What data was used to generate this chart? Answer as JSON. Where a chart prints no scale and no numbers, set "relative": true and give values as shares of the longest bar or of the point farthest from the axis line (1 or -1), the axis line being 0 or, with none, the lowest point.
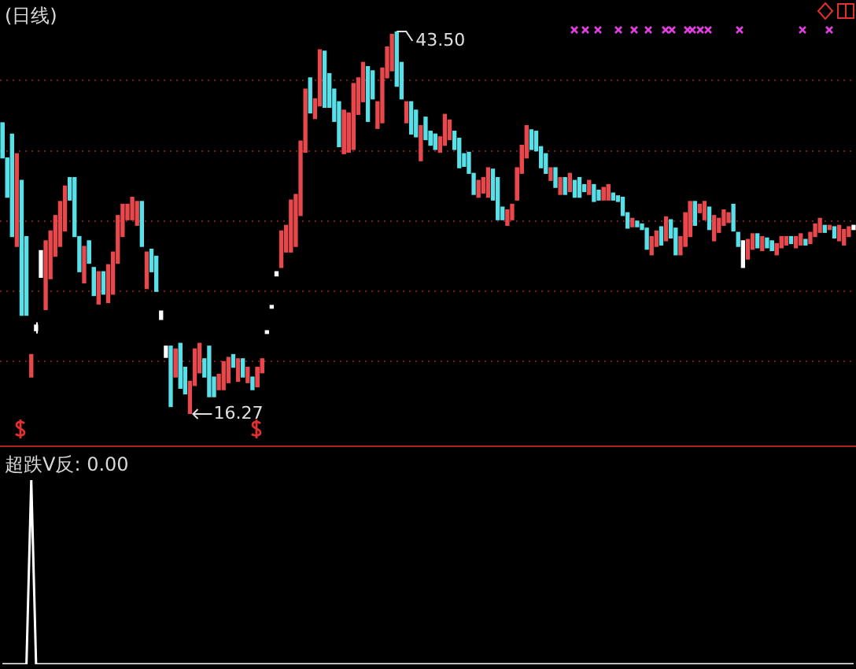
{
  "chart_data": [
    {
      "type": "candlestick",
      "title": "(日线)",
      "legend": false,
      "grid": "y",
      "tick_labels": false,
      "yticks": [
        {
          "value": 20,
          "label": null
        },
        {
          "value": 25,
          "label": null
        },
        {
          "value": 30,
          "label": null
        },
        {
          "value": 35,
          "label": null
        },
        {
          "value": 40,
          "label": null
        }
      ],
      "annotations": [
        "43.50",
        "16.27"
      ],
      "categories": [
        null,
        null,
        null,
        null,
        null,
        null,
        null,
        null,
        null,
        null,
        null,
        null,
        null,
        null,
        null,
        null,
        null,
        null,
        null,
        null,
        null,
        null,
        null,
        null,
        null,
        null,
        null,
        null,
        null,
        null,
        null,
        null,
        null,
        null,
        null,
        null,
        null,
        null,
        null,
        null,
        null,
        null,
        null,
        null,
        null,
        null,
        null,
        null,
        null,
        null,
        null,
        null,
        null,
        null,
        null,
        null,
        null,
        null,
        null,
        null,
        null,
        null,
        null,
        null,
        null,
        null,
        null,
        null,
        null,
        null,
        null,
        null,
        null,
        null,
        null,
        null,
        null,
        null,
        null,
        null,
        null,
        null,
        null,
        null,
        null,
        null,
        null,
        null,
        null,
        null,
        null,
        null,
        null,
        null,
        null,
        null,
        null,
        null,
        null,
        null,
        null,
        null,
        null,
        null,
        null,
        null,
        null,
        null,
        null,
        null,
        null,
        null,
        null,
        null,
        null,
        null,
        null,
        null,
        null,
        null,
        null,
        null,
        null,
        null,
        null,
        null,
        null,
        null,
        null,
        null,
        null,
        null,
        null,
        null,
        null,
        null,
        null,
        null,
        null,
        null,
        null,
        null,
        null,
        null,
        null,
        null,
        null,
        null,
        null,
        null,
        null,
        null,
        null,
        null,
        null,
        null,
        null,
        null,
        null,
        null,
        null,
        null,
        null,
        null,
        null,
        null,
        null,
        null,
        null,
        null,
        null,
        null,
        null,
        null,
        null,
        null,
        null,
        null
      ],
      "ohlc": [
        [
          37.0,
          37.0,
          34.5,
          34.5
        ],
        [
          34.5,
          34.5,
          31.7,
          31.7
        ],
        [
          36.2,
          36.2,
          28.9,
          28.9
        ],
        [
          28.2,
          34.8,
          28.2,
          34.8
        ],
        [
          32.9,
          32.9,
          23.3,
          23.3
        ],
        [
          28.9,
          28.9,
          23.3,
          23.3
        ],
        [
          18.9,
          20.5,
          18.9,
          20.5
        ],
        [
          22.6,
          22.8,
          22.0,
          22.2
        ],
        [
          27.9,
          27.9,
          26.0,
          26.0
        ],
        [
          23.7,
          28.6,
          23.7,
          28.6
        ],
        [
          25.9,
          29.3,
          25.9,
          29.3
        ],
        [
          27.5,
          30.4,
          27.5,
          30.4
        ],
        [
          28.2,
          31.4,
          28.2,
          31.4
        ],
        [
          29.3,
          32.5,
          29.3,
          32.5
        ],
        [
          33.1,
          33.1,
          31.5,
          31.5
        ],
        [
          33.1,
          33.1,
          28.9,
          28.9
        ],
        [
          28.9,
          28.9,
          26.4,
          26.4
        ],
        [
          25.6,
          28.2,
          25.6,
          28.2
        ],
        [
          28.6,
          28.6,
          27.0,
          27.0
        ],
        [
          26.7,
          26.7,
          24.7,
          24.7
        ],
        [
          24.1,
          26.4,
          24.1,
          26.4
        ],
        [
          26.4,
          26.4,
          24.8,
          24.8
        ],
        [
          24.2,
          26.9,
          24.2,
          26.9
        ],
        [
          24.8,
          27.8,
          24.8,
          27.8
        ],
        [
          27.0,
          30.4,
          27.0,
          30.4
        ],
        [
          28.9,
          31.2,
          28.9,
          31.2
        ],
        [
          30.1,
          31.2,
          30.1,
          31.2
        ],
        [
          30.1,
          31.7,
          30.1,
          31.7
        ],
        [
          29.7,
          31.4,
          29.7,
          31.4
        ],
        [
          31.4,
          31.4,
          28.2,
          28.2
        ],
        [
          25.2,
          27.8,
          25.2,
          27.8
        ],
        [
          28.0,
          28.0,
          26.4,
          26.4
        ],
        [
          27.5,
          27.5,
          25.0,
          25.0
        ],
        [
          23.6,
          23.6,
          23.0,
          23.0
        ],
        [
          21.1,
          21.1,
          20.3,
          20.3
        ],
        [
          21.1,
          21.1,
          16.8,
          16.8
        ],
        [
          18.9,
          20.9,
          18.9,
          20.9
        ],
        [
          21.3,
          21.3,
          18.1,
          18.1
        ],
        [
          19.6,
          19.6,
          17.7,
          17.7
        ],
        [
          16.27,
          18.6,
          16.27,
          18.6
        ],
        [
          18.3,
          20.9,
          18.3,
          20.9
        ],
        [
          19.2,
          21.3,
          19.2,
          21.3
        ],
        [
          20.2,
          20.2,
          18.9,
          18.9
        ],
        [
          21.1,
          21.1,
          17.5,
          17.5
        ],
        [
          18.9,
          18.9,
          17.5,
          17.5
        ],
        [
          18.0,
          19.1,
          18.0,
          19.1
        ],
        [
          18.0,
          20.0,
          18.0,
          20.0
        ],
        [
          18.5,
          20.3,
          18.5,
          20.3
        ],
        [
          20.5,
          20.5,
          19.6,
          19.6
        ],
        [
          18.6,
          20.2,
          18.6,
          20.2
        ],
        [
          20.2,
          20.2,
          18.9,
          18.9
        ],
        [
          18.5,
          19.6,
          18.5,
          19.6
        ],
        [
          18.9,
          18.9,
          18.0,
          18.0
        ],
        [
          18.2,
          19.6,
          18.2,
          19.6
        ],
        [
          19.2,
          20.2,
          19.2,
          20.2
        ],
        [
          22.2,
          22.2,
          22.0,
          22.0
        ],
        [
          24.0,
          24.0,
          23.8,
          23.8
        ],
        [
          26.4,
          26.4,
          26.1,
          26.1
        ],
        [
          26.7,
          29.3,
          26.7,
          29.3
        ],
        [
          27.8,
          29.7,
          27.8,
          29.7
        ],
        [
          27.8,
          31.5,
          27.8,
          31.5
        ],
        [
          28.2,
          31.9,
          28.2,
          31.9
        ],
        [
          30.4,
          35.7,
          30.4,
          35.7
        ],
        [
          34.9,
          39.4,
          34.9,
          39.4
        ],
        [
          40.2,
          40.2,
          37.7,
          37.7
        ],
        [
          37.3,
          38.7,
          37.3,
          38.7
        ],
        [
          38.2,
          42.2,
          38.2,
          42.2
        ],
        [
          42.1,
          42.1,
          38.1,
          38.1
        ],
        [
          40.5,
          40.5,
          38.1,
          38.1
        ],
        [
          39.4,
          39.4,
          37.1,
          37.1
        ],
        [
          38.5,
          38.5,
          35.3,
          35.3
        ],
        [
          34.8,
          37.9,
          34.8,
          37.9
        ],
        [
          34.9,
          37.7,
          34.9,
          37.7
        ],
        [
          35.1,
          39.8,
          35.1,
          39.8
        ],
        [
          37.6,
          40.2,
          37.6,
          40.2
        ],
        [
          38.5,
          41.3,
          38.5,
          41.3
        ],
        [
          41.0,
          41.0,
          37.1,
          37.1
        ],
        [
          40.7,
          40.7,
          38.7,
          38.7
        ],
        [
          36.6,
          38.5,
          36.6,
          38.5
        ],
        [
          37.0,
          40.9,
          37.0,
          40.9
        ],
        [
          40.2,
          42.4,
          40.2,
          42.4
        ],
        [
          40.7,
          43.3,
          40.7,
          43.3
        ],
        [
          43.5,
          43.5,
          39.6,
          39.6
        ],
        [
          41.3,
          41.3,
          38.7,
          38.7
        ],
        [
          37.0,
          38.5,
          37.0,
          38.5
        ],
        [
          38.5,
          38.5,
          36.2,
          36.2
        ],
        [
          37.9,
          37.9,
          36.0,
          36.0
        ],
        [
          34.3,
          36.8,
          34.3,
          36.8
        ],
        [
          37.4,
          37.4,
          35.8,
          35.8
        ],
        [
          36.4,
          36.4,
          35.4,
          35.4
        ],
        [
          36.2,
          36.2,
          35.1,
          35.1
        ],
        [
          34.9,
          36.0,
          34.9,
          36.0
        ],
        [
          35.4,
          37.6,
          35.4,
          37.6
        ],
        [
          35.8,
          37.2,
          35.8,
          37.2
        ],
        [
          36.4,
          36.4,
          35.1,
          35.1
        ],
        [
          35.9,
          35.9,
          33.8,
          33.8
        ],
        [
          34.8,
          34.8,
          33.9,
          33.9
        ],
        [
          34.9,
          34.9,
          33.4,
          33.4
        ],
        [
          33.4,
          33.4,
          31.9,
          31.9
        ],
        [
          31.7,
          32.9,
          31.7,
          32.9
        ],
        [
          32.0,
          33.1,
          32.0,
          33.1
        ],
        [
          31.7,
          33.8,
          31.7,
          33.8
        ],
        [
          33.7,
          33.7,
          31.5,
          31.5
        ],
        [
          33.1,
          33.1,
          30.1,
          30.1
        ],
        [
          31.0,
          31.0,
          30.1,
          30.1
        ],
        [
          29.7,
          30.8,
          29.7,
          30.8
        ],
        [
          30.1,
          31.2,
          30.1,
          31.2
        ],
        [
          31.5,
          33.8,
          31.5,
          33.8
        ],
        [
          33.4,
          35.4,
          33.4,
          35.4
        ],
        [
          34.5,
          36.8,
          34.5,
          36.8
        ],
        [
          36.5,
          36.5,
          35.1,
          35.1
        ],
        [
          36.4,
          36.4,
          35.0,
          35.0
        ],
        [
          35.3,
          35.3,
          33.8,
          33.8
        ],
        [
          34.8,
          34.8,
          33.4,
          33.4
        ],
        [
          32.9,
          33.8,
          32.9,
          33.8
        ],
        [
          33.8,
          33.8,
          32.4,
          32.4
        ],
        [
          31.9,
          33.1,
          31.9,
          33.1
        ],
        [
          33.1,
          33.1,
          31.9,
          31.9
        ],
        [
          32.1,
          33.4,
          32.1,
          33.4
        ],
        [
          32.9,
          32.9,
          31.7,
          31.7
        ],
        [
          33.1,
          33.1,
          31.7,
          31.7
        ],
        [
          32.6,
          32.6,
          32.1,
          32.1
        ],
        [
          31.9,
          32.9,
          31.9,
          32.9
        ],
        [
          32.6,
          32.6,
          31.4,
          31.4
        ],
        [
          32.2,
          32.2,
          31.5,
          31.5
        ],
        [
          31.5,
          32.4,
          31.5,
          32.4
        ],
        [
          31.5,
          32.6,
          31.5,
          32.6
        ],
        [
          32.0,
          32.0,
          31.5,
          31.5
        ],
        [
          31.8,
          31.8,
          31.4,
          31.4
        ],
        [
          31.7,
          31.7,
          30.4,
          30.4
        ],
        [
          30.6,
          30.6,
          29.5,
          29.5
        ],
        [
          29.6,
          30.2,
          29.6,
          30.2
        ],
        [
          30.0,
          30.0,
          29.6,
          29.6
        ],
        [
          29.8,
          29.8,
          29.4,
          29.4
        ],
        [
          29.5,
          29.5,
          28.0,
          28.0
        ],
        [
          27.6,
          28.9,
          27.6,
          28.9
        ],
        [
          28.2,
          29.3,
          28.2,
          29.3
        ],
        [
          29.6,
          29.6,
          28.3,
          28.3
        ],
        [
          28.6,
          30.3,
          28.6,
          30.3
        ],
        [
          30.1,
          30.1,
          28.8,
          28.8
        ],
        [
          29.5,
          29.5,
          27.6,
          27.6
        ],
        [
          27.6,
          28.9,
          27.6,
          28.9
        ],
        [
          28.2,
          30.6,
          28.2,
          30.6
        ],
        [
          28.9,
          31.4,
          28.9,
          31.4
        ],
        [
          31.4,
          31.4,
          29.7,
          29.7
        ],
        [
          30.6,
          31.2,
          30.6,
          31.2
        ],
        [
          30.1,
          31.4,
          30.1,
          31.4
        ],
        [
          31.0,
          31.0,
          29.4,
          29.4
        ],
        [
          28.6,
          30.4,
          28.6,
          30.4
        ],
        [
          29.2,
          30.2,
          29.2,
          30.2
        ],
        [
          29.7,
          30.8,
          29.7,
          30.8
        ],
        [
          29.9,
          30.6,
          29.9,
          30.6
        ],
        [
          31.2,
          31.2,
          29.3,
          29.3
        ],
        [
          29.2,
          29.2,
          28.2,
          28.2
        ],
        [
          28.6,
          28.6,
          26.7,
          26.7
        ],
        [
          27.3,
          28.7,
          27.3,
          28.7
        ],
        [
          28.0,
          29.1,
          28.0,
          29.1
        ],
        [
          29.1,
          29.1,
          28.1,
          28.1
        ],
        [
          27.9,
          28.9,
          27.9,
          28.9
        ],
        [
          28.8,
          28.8,
          28.1,
          28.1
        ],
        [
          28.6,
          28.6,
          27.9,
          27.9
        ],
        [
          27.6,
          28.4,
          27.6,
          28.4
        ],
        [
          28.1,
          28.9,
          28.1,
          28.9
        ],
        [
          28.3,
          28.9,
          28.3,
          28.9
        ],
        [
          28.9,
          28.9,
          28.4,
          28.4
        ],
        [
          28.1,
          28.9,
          28.1,
          28.9
        ],
        [
          28.3,
          29.1,
          28.3,
          29.1
        ],
        [
          28.7,
          28.7,
          28.3,
          28.3
        ],
        [
          28.4,
          29.2,
          28.4,
          29.2
        ],
        [
          28.9,
          29.8,
          28.9,
          29.8
        ],
        [
          29.2,
          30.2,
          29.2,
          30.2
        ],
        [
          29.7,
          29.7,
          29.2,
          29.2
        ],
        [
          29.4,
          29.7,
          29.4,
          29.7
        ],
        [
          29.6,
          29.6,
          28.8,
          28.8
        ],
        [
          28.6,
          29.7,
          28.6,
          29.7
        ],
        [
          28.3,
          29.4,
          28.3,
          29.4
        ],
        [
          28.9,
          29.6,
          28.9,
          29.6
        ],
        [
          29.7,
          29.7,
          29.4,
          29.4
        ]
      ],
      "colors": [
        "#58e0e8",
        "#58e0e8",
        "#58e0e8",
        "#e8484c",
        "#58e0e8",
        "#58e0e8",
        "#e8484c",
        "#ffffff",
        "#ffffff",
        "#e8484c",
        "#e8484c",
        "#e8484c",
        "#e8484c",
        "#e8484c",
        "#58e0e8",
        "#58e0e8",
        "#58e0e8",
        "#e8484c",
        "#58e0e8",
        "#58e0e8",
        "#e8484c",
        "#58e0e8",
        "#e8484c",
        "#e8484c",
        "#e8484c",
        "#e8484c",
        "#e8484c",
        "#e8484c",
        "#e8484c",
        "#58e0e8",
        "#e8484c",
        "#58e0e8",
        "#58e0e8",
        "#ffffff",
        "#ffffff",
        "#58e0e8",
        "#e8484c",
        "#58e0e8",
        "#58e0e8",
        "#e8484c",
        "#e8484c",
        "#e8484c",
        "#58e0e8",
        "#58e0e8",
        "#58e0e8",
        "#e8484c",
        "#e8484c",
        "#e8484c",
        "#58e0e8",
        "#e8484c",
        "#58e0e8",
        "#e8484c",
        "#58e0e8",
        "#e8484c",
        "#e8484c",
        "#ffffff",
        "#ffffff",
        "#ffffff",
        "#e8484c",
        "#e8484c",
        "#e8484c",
        "#e8484c",
        "#e8484c",
        "#e8484c",
        "#58e0e8",
        "#e8484c",
        "#e8484c",
        "#58e0e8",
        "#58e0e8",
        "#58e0e8",
        "#58e0e8",
        "#e8484c",
        "#e8484c",
        "#e8484c",
        "#e8484c",
        "#e8484c",
        "#58e0e8",
        "#58e0e8",
        "#e8484c",
        "#e8484c",
        "#e8484c",
        "#e8484c",
        "#58e0e8",
        "#58e0e8",
        "#e8484c",
        "#58e0e8",
        "#58e0e8",
        "#e8484c",
        "#58e0e8",
        "#58e0e8",
        "#58e0e8",
        "#e8484c",
        "#e8484c",
        "#e8484c",
        "#58e0e8",
        "#58e0e8",
        "#58e0e8",
        "#58e0e8",
        "#58e0e8",
        "#e8484c",
        "#e8484c",
        "#e8484c",
        "#58e0e8",
        "#58e0e8",
        "#58e0e8",
        "#e8484c",
        "#e8484c",
        "#e8484c",
        "#e8484c",
        "#e8484c",
        "#58e0e8",
        "#58e0e8",
        "#58e0e8",
        "#58e0e8",
        "#e8484c",
        "#58e0e8",
        "#e8484c",
        "#58e0e8",
        "#e8484c",
        "#58e0e8",
        "#58e0e8",
        "#58e0e8",
        "#e8484c",
        "#58e0e8",
        "#58e0e8",
        "#e8484c",
        "#e8484c",
        "#58e0e8",
        "#58e0e8",
        "#58e0e8",
        "#58e0e8",
        "#e8484c",
        "#58e0e8",
        "#58e0e8",
        "#58e0e8",
        "#e8484c",
        "#e8484c",
        "#58e0e8",
        "#e8484c",
        "#58e0e8",
        "#58e0e8",
        "#e8484c",
        "#e8484c",
        "#e8484c",
        "#58e0e8",
        "#e8484c",
        "#e8484c",
        "#58e0e8",
        "#e8484c",
        "#e8484c",
        "#e8484c",
        "#e8484c",
        "#58e0e8",
        "#58e0e8",
        "#ffffff",
        "#e8484c",
        "#e8484c",
        "#58e0e8",
        "#e8484c",
        "#58e0e8",
        "#58e0e8",
        "#e8484c",
        "#e8484c",
        "#e8484c",
        "#58e0e8",
        "#e8484c",
        "#e8484c",
        "#58e0e8",
        "#e8484c",
        "#e8484c",
        "#e8484c",
        "#58e0e8",
        "#e8484c",
        "#58e0e8",
        "#e8484c",
        "#e8484c",
        "#e8484c",
        "#ffffff"
      ]
    },
    {
      "type": "line",
      "title": "超跌V反: 0.00",
      "relative": true,
      "legend": false,
      "categories": [
        null,
        null,
        null,
        null,
        null,
        null,
        null,
        null,
        null,
        null,
        null,
        null,
        null,
        null,
        null,
        null,
        null,
        null,
        null,
        null,
        null,
        null,
        null,
        null,
        null,
        null,
        null,
        null,
        null,
        null,
        null,
        null,
        null,
        null,
        null,
        null,
        null,
        null,
        null,
        null,
        null,
        null,
        null,
        null,
        null,
        null,
        null,
        null,
        null,
        null,
        null,
        null,
        null,
        null,
        null,
        null,
        null,
        null,
        null,
        null,
        null,
        null,
        null,
        null,
        null,
        null,
        null,
        null,
        null,
        null,
        null,
        null,
        null,
        null,
        null,
        null,
        null,
        null,
        null,
        null,
        null,
        null,
        null,
        null,
        null,
        null,
        null,
        null,
        null,
        null,
        null,
        null,
        null,
        null,
        null,
        null,
        null,
        null,
        null,
        null,
        null,
        null,
        null,
        null,
        null,
        null,
        null,
        null,
        null,
        null,
        null,
        null,
        null,
        null,
        null,
        null,
        null,
        null,
        null,
        null,
        null,
        null,
        null,
        null,
        null,
        null,
        null,
        null,
        null,
        null,
        null,
        null,
        null,
        null,
        null,
        null,
        null,
        null,
        null,
        null,
        null,
        null,
        null,
        null,
        null,
        null,
        null,
        null,
        null,
        null,
        null,
        null,
        null,
        null,
        null,
        null,
        null,
        null,
        null,
        null,
        null,
        null,
        null,
        null,
        null,
        null,
        null,
        null,
        null,
        null,
        null,
        null,
        null,
        null,
        null,
        null,
        null,
        null
      ],
      "series": [
        {
          "color": "#ffffff",
          "values": [
            0,
            0,
            0,
            0,
            0,
            0,
            1,
            0,
            0,
            0,
            0,
            0,
            0,
            0,
            0,
            0,
            0,
            0,
            0,
            0,
            0,
            0,
            0,
            0,
            0,
            0,
            0,
            0,
            0,
            0,
            0,
            0,
            0,
            0,
            0,
            0,
            0,
            0,
            0,
            0,
            0,
            0,
            0,
            0,
            0,
            0,
            0,
            0,
            0,
            0,
            0,
            0,
            0,
            0,
            0,
            0,
            0,
            0,
            0,
            0,
            0,
            0,
            0,
            0,
            0,
            0,
            0,
            0,
            0,
            0,
            0,
            0,
            0,
            0,
            0,
            0,
            0,
            0,
            0,
            0,
            0,
            0,
            0,
            0,
            0,
            0,
            0,
            0,
            0,
            0,
            0,
            0,
            0,
            0,
            0,
            0,
            0,
            0,
            0,
            0,
            0,
            0,
            0,
            0,
            0,
            0,
            0,
            0,
            0,
            0,
            0,
            0,
            0,
            0,
            0,
            0,
            0,
            0,
            0,
            0,
            0,
            0,
            0,
            0,
            0,
            0,
            0,
            0,
            0,
            0,
            0,
            0,
            0,
            0,
            0,
            0,
            0,
            0,
            0,
            0,
            0,
            0,
            0,
            0,
            0,
            0,
            0,
            0,
            0,
            0,
            0,
            0,
            0,
            0,
            0,
            0,
            0,
            0,
            0,
            0,
            0,
            0,
            0,
            0,
            0,
            0,
            0,
            0,
            0,
            0,
            0,
            0,
            0,
            0,
            0,
            0,
            0,
            0
          ]
        }
      ]
    }
  ]
}
